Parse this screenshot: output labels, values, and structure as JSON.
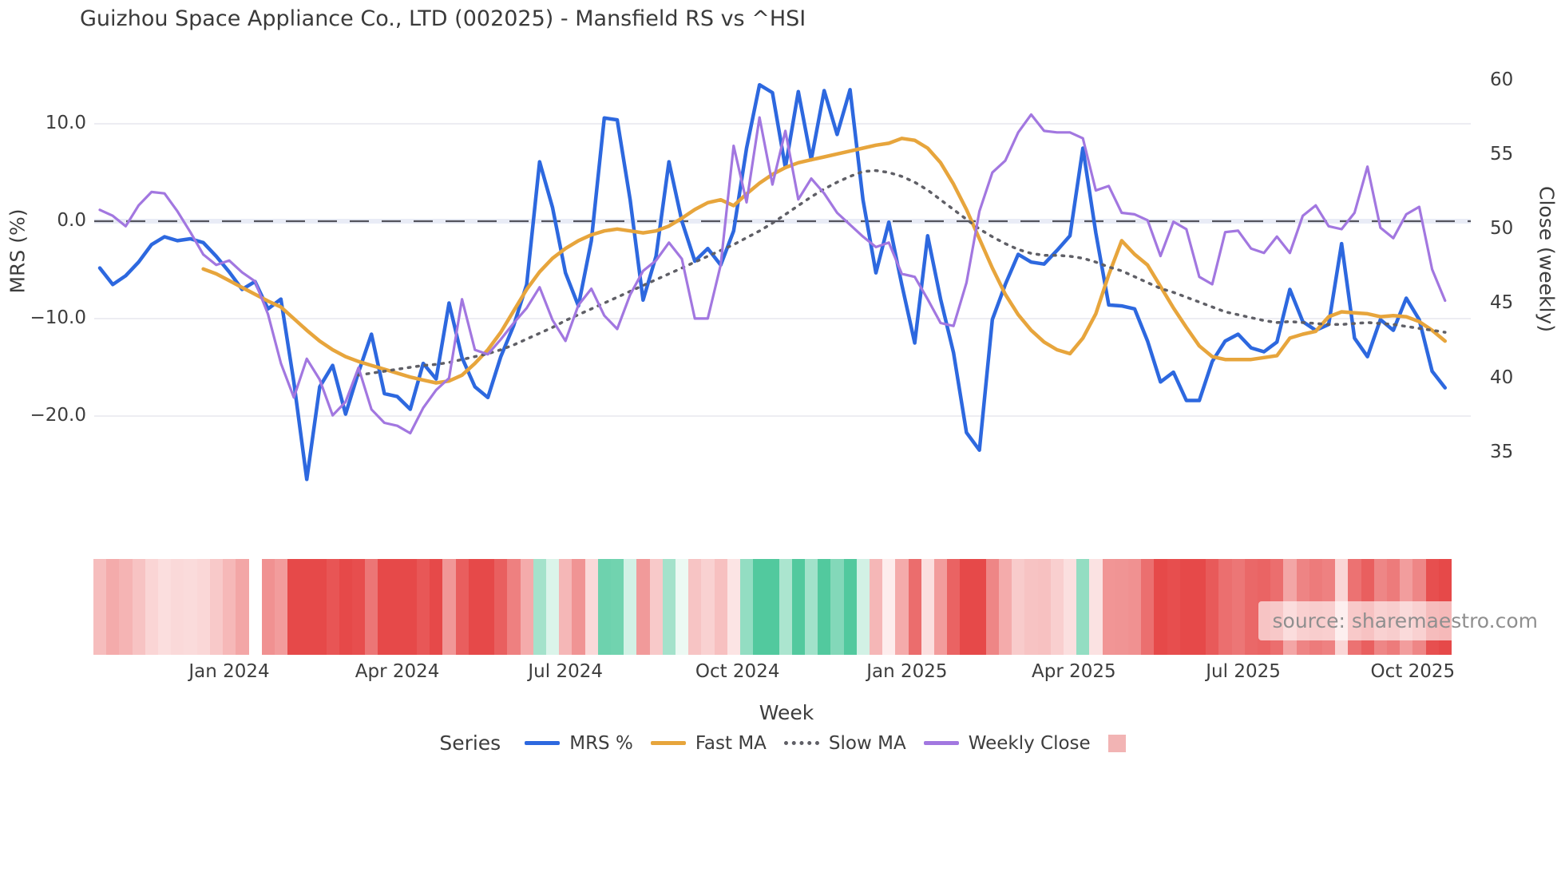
{
  "header": {
    "title": "Guizhou Space Appliance Co., LTD (002025) - Mansfield RS vs ^HSI"
  },
  "watermark": {
    "text": "source: sharemaestro.com"
  },
  "legend": {
    "title": "Series",
    "items": [
      {
        "label": "MRS %",
        "style": "line",
        "color": "#2d68df"
      },
      {
        "label": "Fast MA",
        "style": "line",
        "color": "#e7a53c"
      },
      {
        "label": "Slow MA",
        "style": "dotted",
        "color": "#5f5f66"
      },
      {
        "label": "Weekly Close",
        "style": "line",
        "color": "#a277e0"
      },
      {
        "label": "",
        "style": "square",
        "color": "#f2b4b4"
      }
    ]
  },
  "chart_data": {
    "type": "line",
    "title": "Guizhou Space Appliance Co., LTD (002025) - Mansfield RS vs ^HSI",
    "grid": true,
    "zero_line_dashed": true,
    "x_axis": {
      "label": "Week",
      "ticks": [
        {
          "label": "Jan 2024",
          "week": 10
        },
        {
          "label": "Apr 2024",
          "week": 23
        },
        {
          "label": "Jul 2024",
          "week": 36
        },
        {
          "label": "Oct 2024",
          "week": 49.3
        },
        {
          "label": "Jan 2025",
          "week": 62.4
        },
        {
          "label": "Apr 2025",
          "week": 75.3
        },
        {
          "label": "Jul 2025",
          "week": 88.4
        },
        {
          "label": "Oct 2025",
          "week": 101.5
        }
      ],
      "weeks_total": 105
    },
    "y_left": {
      "label": "MRS (%)",
      "ticks": [
        10.0,
        0.0,
        -10.0,
        -20.0
      ],
      "tick_labels": [
        "10.0",
        "0.0",
        "−10.0",
        "−20.0"
      ],
      "range": [
        -28.8,
        16.1
      ]
    },
    "y_right": {
      "label": "Close (weekly)",
      "ticks": [
        60,
        55,
        50,
        45,
        40,
        35
      ],
      "tick_labels": [
        "60",
        "55",
        "50",
        "45",
        "40",
        "35"
      ],
      "range": [
        33.6,
        62.2
      ]
    },
    "series": [
      {
        "name": "MRS %",
        "axis": "left",
        "color": "#2d68df",
        "style": "solid",
        "width": 4.5,
        "values": [
          -4.8,
          -6.5,
          -5.6,
          -4.2,
          -2.4,
          -1.6,
          -2.0,
          -1.8,
          -2.2,
          -3.6,
          -5.2,
          -7.0,
          -6.2,
          -9.0,
          -8.0,
          -16.5,
          -26.5,
          -17.0,
          -14.8,
          -19.8,
          -15.5,
          -11.6,
          -17.7,
          -18.0,
          -19.3,
          -14.6,
          -16.2,
          -8.4,
          -14.0,
          -17.0,
          -18.1,
          -13.9,
          -10.7,
          -6.5,
          6.1,
          1.4,
          -5.3,
          -8.7,
          -2.0,
          10.6,
          10.4,
          2.2,
          -8.1,
          -3.6,
          6.1,
          0.0,
          -4.1,
          -2.8,
          -4.5,
          -1.0,
          7.5,
          14.0,
          13.2,
          5.5,
          13.3,
          6.3,
          13.4,
          8.9,
          13.5,
          2.2,
          -5.3,
          -0.1,
          -6.5,
          -12.5,
          -1.5,
          -8.0,
          -13.5,
          -21.7,
          -23.5,
          -10.1,
          -6.5,
          -3.4,
          -4.2,
          -4.4,
          -3.0,
          -1.5,
          7.5,
          -1.2,
          -8.6,
          -8.7,
          -9.0,
          -12.3,
          -16.5,
          -15.5,
          -18.4,
          -18.4,
          -14.4,
          -12.3,
          -11.6,
          -13.0,
          -13.4,
          -12.4,
          -7.0,
          -10.3,
          -11.2,
          -10.6,
          -2.3,
          -12.0,
          -13.9,
          -10.1,
          -11.2,
          -7.9,
          -10.1,
          -15.4,
          -17.1
        ]
      },
      {
        "name": "Fast MA",
        "axis": "left",
        "color": "#e7a53c",
        "style": "solid",
        "width": 4.5,
        "values": [
          null,
          null,
          null,
          null,
          null,
          null,
          null,
          null,
          -4.9,
          -5.4,
          -6.1,
          -6.8,
          -7.5,
          -8.2,
          -8.8,
          -10.0,
          -11.2,
          -12.3,
          -13.2,
          -13.9,
          -14.4,
          -14.8,
          -15.2,
          -15.6,
          -16.0,
          -16.3,
          -16.6,
          -16.4,
          -15.8,
          -14.6,
          -13.2,
          -11.4,
          -9.2,
          -7.0,
          -5.2,
          -3.8,
          -2.8,
          -2.0,
          -1.4,
          -1.0,
          -0.8,
          -1.0,
          -1.2,
          -1.0,
          -0.5,
          0.3,
          1.2,
          1.9,
          2.2,
          1.6,
          2.8,
          3.9,
          4.8,
          5.5,
          6.0,
          6.3,
          6.6,
          6.9,
          7.2,
          7.5,
          7.8,
          8.0,
          8.5,
          8.3,
          7.5,
          6.0,
          3.8,
          1.2,
          -1.8,
          -4.8,
          -7.5,
          -9.6,
          -11.2,
          -12.4,
          -13.2,
          -13.6,
          -12.0,
          -9.5,
          -5.5,
          -2.0,
          -3.4,
          -4.5,
          -6.7,
          -8.9,
          -10.9,
          -12.8,
          -13.9,
          -14.2,
          -14.2,
          -14.2,
          -14.0,
          -13.8,
          -12.0,
          -11.6,
          -11.3,
          -9.8,
          -9.3,
          -9.4,
          -9.5,
          -9.8,
          -9.7,
          -9.8,
          -10.3,
          -11.2,
          -12.3
        ]
      },
      {
        "name": "Slow MA",
        "axis": "left",
        "color": "#5f5f66",
        "style": "dotted",
        "width": 3.5,
        "values": [
          null,
          null,
          null,
          null,
          null,
          null,
          null,
          null,
          null,
          null,
          null,
          null,
          null,
          null,
          null,
          null,
          null,
          null,
          null,
          null,
          -15.8,
          -15.6,
          -15.4,
          -15.2,
          -15.0,
          -14.8,
          -14.7,
          -14.5,
          -14.2,
          -13.9,
          -13.6,
          -13.2,
          -12.7,
          -12.1,
          -11.5,
          -10.9,
          -10.2,
          -9.6,
          -9.0,
          -8.4,
          -7.8,
          -7.2,
          -6.6,
          -6.0,
          -5.4,
          -4.8,
          -4.2,
          -3.6,
          -3.0,
          -2.4,
          -1.7,
          -1.0,
          -0.2,
          0.7,
          1.6,
          2.5,
          3.3,
          4.0,
          4.6,
          5.1,
          5.2,
          5.0,
          4.6,
          4.0,
          3.2,
          2.2,
          1.2,
          0.2,
          -0.8,
          -1.6,
          -2.3,
          -2.9,
          -3.3,
          -3.5,
          -3.5,
          -3.6,
          -3.8,
          -4.2,
          -4.7,
          -5.1,
          -5.7,
          -6.3,
          -6.9,
          -7.3,
          -7.8,
          -8.3,
          -8.8,
          -9.3,
          -9.6,
          -9.9,
          -10.2,
          -10.4,
          -10.3,
          -10.4,
          -10.5,
          -10.6,
          -10.6,
          -10.5,
          -10.4,
          -10.5,
          -10.6,
          -10.8,
          -11.0,
          -11.2,
          -11.4
        ]
      },
      {
        "name": "Weekly Close",
        "axis": "right",
        "color": "#a277e0",
        "style": "solid",
        "width": 3.2,
        "values": [
          51.3,
          50.9,
          50.2,
          51.6,
          52.5,
          52.4,
          51.2,
          49.8,
          48.3,
          47.6,
          47.9,
          47.1,
          46.5,
          44.3,
          41.0,
          38.7,
          41.3,
          39.9,
          37.5,
          38.4,
          40.7,
          37.9,
          37.0,
          36.8,
          36.3,
          38.0,
          39.2,
          40.0,
          45.3,
          41.9,
          41.6,
          42.6,
          43.7,
          44.7,
          46.1,
          43.9,
          42.5,
          44.9,
          46.0,
          44.2,
          43.3,
          45.6,
          47.2,
          47.9,
          49.1,
          48.0,
          44.0,
          44.0,
          47.6,
          55.6,
          51.8,
          57.5,
          53.0,
          56.6,
          52.0,
          53.4,
          52.4,
          51.1,
          50.3,
          49.5,
          48.8,
          49.1,
          47.0,
          46.8,
          45.3,
          43.7,
          43.5,
          46.4,
          51.2,
          53.8,
          54.6,
          56.5,
          57.7,
          56.6,
          56.5,
          56.5,
          56.1,
          52.6,
          52.9,
          51.1,
          51.0,
          50.6,
          48.2,
          50.5,
          50.0,
          46.8,
          46.3,
          49.8,
          49.9,
          48.7,
          48.4,
          49.5,
          48.4,
          50.9,
          51.6,
          50.2,
          50.0,
          51.1,
          54.2,
          50.1,
          49.4,
          51.0,
          51.5,
          47.3,
          45.2
        ]
      }
    ],
    "heatmap_strip": {
      "based_on": "MRS %",
      "gap_weeks": [
        12
      ],
      "negative_color": "#e64949",
      "positive_color": "#52c99e",
      "neutral_color": "#fdeeee"
    },
    "legend_position": "bottom"
  }
}
